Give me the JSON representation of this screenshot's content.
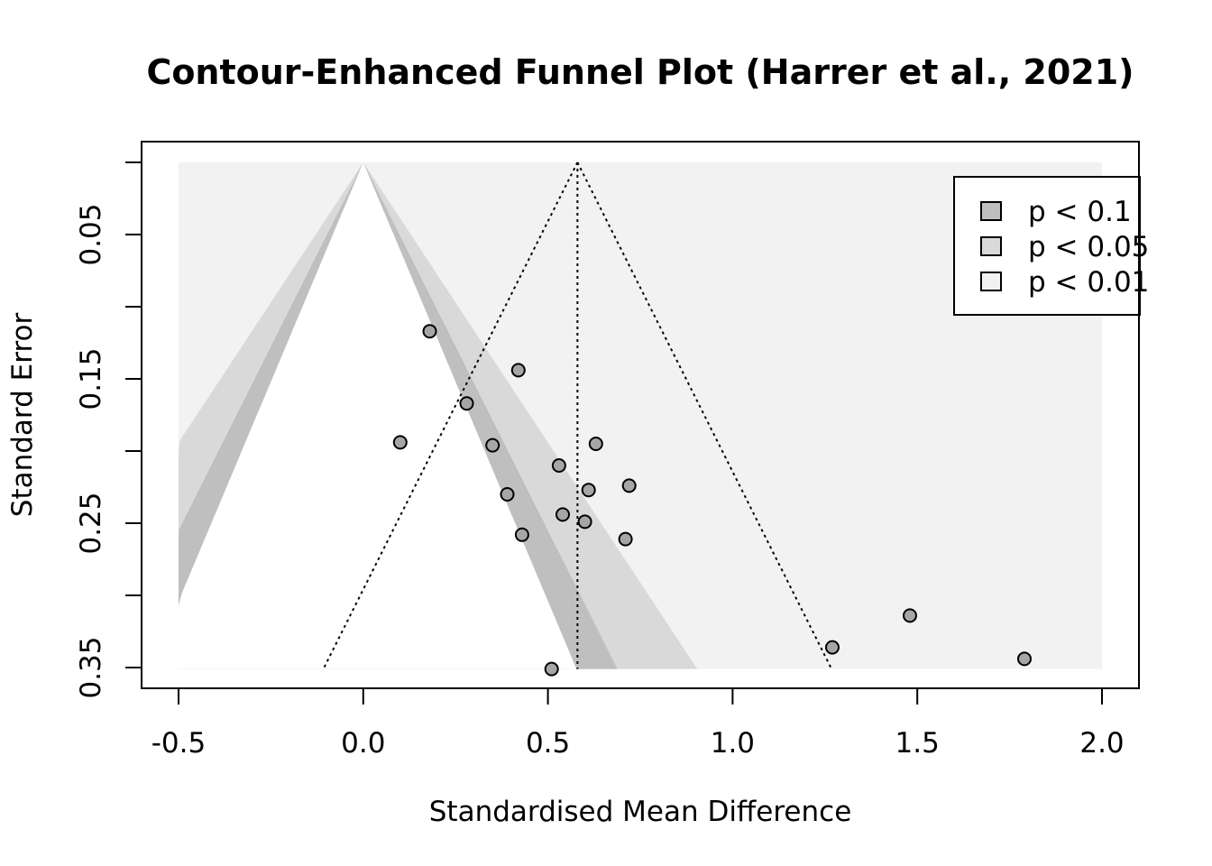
{
  "chart_data": {
    "type": "scatter",
    "title": "Contour-Enhanced Funnel Plot (Harrer et al., 2021)",
    "xlabel": "Standardised Mean Difference",
    "ylabel": "Standard Error",
    "xlim": [
      -0.5,
      2.0
    ],
    "ylim": [
      0.35,
      0
    ],
    "y_reversed": true,
    "xticks": [
      "-0.5",
      "0.0",
      "0.5",
      "1.0",
      "1.5",
      "2.0"
    ],
    "yticks_labeled": [
      "0.05",
      "0.15",
      "0.25",
      "0.35"
    ],
    "contour_center": 0,
    "pooled_estimate": 0.58,
    "grid": false,
    "legend_position": "top-right",
    "legend": [
      {
        "label": "p < 0.1",
        "color": "#bfbfbf"
      },
      {
        "label": "p < 0.05",
        "color": "#d9d9d9"
      },
      {
        "label": "p < 0.01",
        "color": "#f2f2f2"
      }
    ],
    "colors": {
      "points": "#a6a6a6",
      "region_p01": "#bfbfbf",
      "region_p05": "#d9d9d9",
      "region_p001": "#f2f2f2"
    },
    "points": [
      {
        "x": 0.18,
        "y": 0.117
      },
      {
        "x": 0.42,
        "y": 0.144
      },
      {
        "x": 0.28,
        "y": 0.167
      },
      {
        "x": 0.1,
        "y": 0.194
      },
      {
        "x": 0.35,
        "y": 0.196
      },
      {
        "x": 0.63,
        "y": 0.195
      },
      {
        "x": 0.53,
        "y": 0.21
      },
      {
        "x": 0.61,
        "y": 0.227
      },
      {
        "x": 0.72,
        "y": 0.224
      },
      {
        "x": 0.39,
        "y": 0.23
      },
      {
        "x": 0.54,
        "y": 0.244
      },
      {
        "x": 0.6,
        "y": 0.249
      },
      {
        "x": 0.43,
        "y": 0.258
      },
      {
        "x": 0.71,
        "y": 0.261
      },
      {
        "x": 1.48,
        "y": 0.314
      },
      {
        "x": 1.27,
        "y": 0.336
      },
      {
        "x": 1.79,
        "y": 0.344
      },
      {
        "x": 0.51,
        "y": 0.351
      }
    ]
  }
}
